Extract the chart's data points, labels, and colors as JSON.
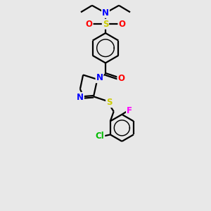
{
  "background_color": "#e8e8e8",
  "bond_color": "#000000",
  "bond_width": 1.6,
  "atom_colors": {
    "N": "#0000ff",
    "O": "#ff0000",
    "S": "#cccc00",
    "S2": "#cccc00",
    "F": "#ff00ff",
    "Cl": "#00bb00",
    "C": "#000000"
  },
  "font_size_atoms": 8.5,
  "figsize": [
    3.0,
    3.0
  ],
  "dpi": 100
}
